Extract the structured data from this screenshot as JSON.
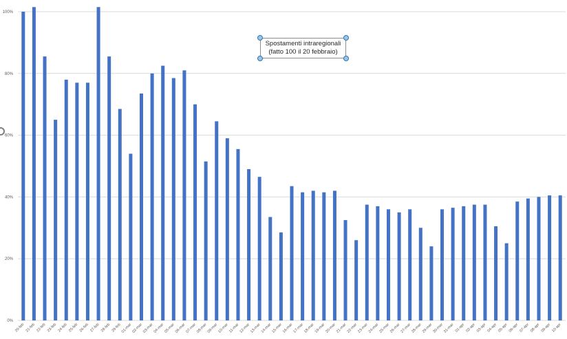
{
  "chart_data": {
    "type": "bar",
    "title_lines": [
      "Spostamenti intraregionali",
      "(fatto 100 il 20 febbraio)"
    ],
    "ylim": [
      0,
      100
    ],
    "yticks": [
      0,
      20,
      40,
      60,
      80,
      100
    ],
    "ytick_labels": [
      "0%",
      "20%",
      "40%",
      "60%",
      "80%",
      "100%"
    ],
    "grid": true,
    "bar_color": "#4472C4",
    "categories": [
      "20-feb",
      "21-feb",
      "22-feb",
      "23-feb",
      "24-feb",
      "25-feb",
      "26-feb",
      "27-feb",
      "28-feb",
      "29-feb",
      "01-mar",
      "02-mar",
      "03-mar",
      "04-mar",
      "05-mar",
      "06-mar",
      "07-mar",
      "08-mar",
      "09-mar",
      "10-mar",
      "11-mar",
      "12-mar",
      "13-mar",
      "14-mar",
      "15-mar",
      "16-mar",
      "17-mar",
      "18-mar",
      "19-mar",
      "20-mar",
      "21-mar",
      "22-mar",
      "23-mar",
      "24-mar",
      "25-mar",
      "26-mar",
      "27-mar",
      "28-mar",
      "29-mar",
      "30-mar",
      "31-mar",
      "01-apr",
      "02-apr",
      "03-apr",
      "04-apr",
      "05-apr",
      "06-apr",
      "07-apr",
      "08-apr",
      "09-apr",
      "10-apr"
    ],
    "values": [
      100,
      101.5,
      85.5,
      65,
      78,
      77,
      77,
      101.5,
      85.5,
      68.5,
      54,
      73.5,
      80,
      82.5,
      78.5,
      81,
      70,
      51.5,
      64.5,
      59,
      55.5,
      49,
      46.5,
      33.5,
      28.5,
      43.5,
      41.5,
      42,
      41.5,
      42,
      32.5,
      26,
      37.5,
      37,
      36,
      35,
      36,
      30,
      24,
      36,
      36.5,
      37,
      37.5,
      37.5,
      30.5,
      25,
      38.5,
      39.5,
      40,
      40.5,
      40.5
    ]
  }
}
